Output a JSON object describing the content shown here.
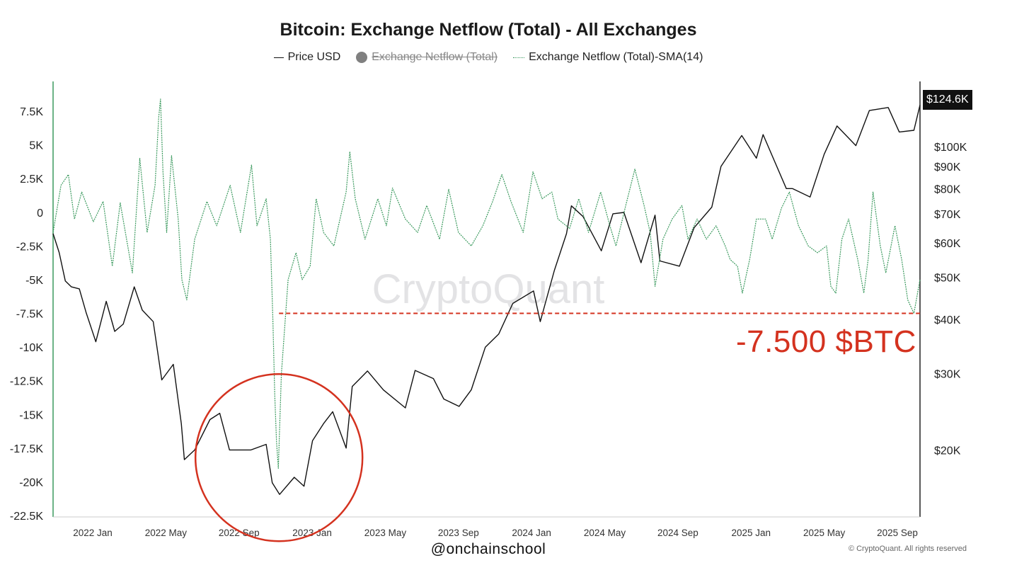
{
  "chart_data": {
    "type": "line",
    "title": "Bitcoin: Exchange Netflow (Total) - All Exchanges",
    "legend": [
      {
        "name": "Price USD",
        "style": "solid",
        "color": "#111111",
        "disabled": false
      },
      {
        "name": "Exchange Netflow (Total)",
        "style": "dot",
        "color": "#808080",
        "disabled": true
      },
      {
        "name": "Exchange Netflow (Total)-SMA(14)",
        "style": "dotted",
        "color": "#3c9a5f",
        "disabled": false
      }
    ],
    "legend_placement": "top-center",
    "x_ticks": [
      "2022 Jan",
      "2022 May",
      "2022 Sep",
      "2023 Jan",
      "2023 May",
      "2023 Sep",
      "2024 Jan",
      "2024 May",
      "2024 Sep",
      "2025 Jan",
      "2025 May",
      "2025 Sep"
    ],
    "x_range": [
      "2021-11-15",
      "2025-10-05"
    ],
    "y_left": {
      "label": "",
      "ticks": [
        "7.5K",
        "5K",
        "2.5K",
        "0",
        "-2.5K",
        "-5K",
        "-7.5K",
        "-10K",
        "-12.5K",
        "-15K",
        "-17.5K",
        "-20K",
        "-22.5K"
      ],
      "tick_values": [
        7500,
        5000,
        2500,
        0,
        -2500,
        -5000,
        -7500,
        -10000,
        -12500,
        -15000,
        -17500,
        -20000,
        -22500
      ],
      "range": [
        -22500,
        10000
      ]
    },
    "y_right": {
      "label": "",
      "scale": "log",
      "ticks": [
        "$100K",
        "$90K",
        "$80K",
        "$70K",
        "$60K",
        "$50K",
        "$40K",
        "$30K",
        "$20K"
      ],
      "tick_values": [
        100000,
        90000,
        80000,
        70000,
        60000,
        50000,
        40000,
        30000,
        20000
      ],
      "range": [
        15000,
        135000
      ]
    },
    "grid": false,
    "series": [
      {
        "name": "Price USD",
        "axis": "right",
        "color": "#111111",
        "points": [
          [
            "2021-11-15",
            63000
          ],
          [
            "2021-11-25",
            57000
          ],
          [
            "2021-12-05",
            49000
          ],
          [
            "2021-12-15",
            47500
          ],
          [
            "2021-12-28",
            47000
          ],
          [
            "2022-01-08",
            41500
          ],
          [
            "2022-01-24",
            35500
          ],
          [
            "2022-02-10",
            44000
          ],
          [
            "2022-02-24",
            37500
          ],
          [
            "2022-03-10",
            39000
          ],
          [
            "2022-03-28",
            47500
          ],
          [
            "2022-04-10",
            42000
          ],
          [
            "2022-04-28",
            39500
          ],
          [
            "2022-05-12",
            29000
          ],
          [
            "2022-05-31",
            31500
          ],
          [
            "2022-06-13",
            23000
          ],
          [
            "2022-06-18",
            19000
          ],
          [
            "2022-07-05",
            20000
          ],
          [
            "2022-07-30",
            23500
          ],
          [
            "2022-08-15",
            24300
          ],
          [
            "2022-08-31",
            20000
          ],
          [
            "2022-09-15",
            20000
          ],
          [
            "2022-10-05",
            20000
          ],
          [
            "2022-10-30",
            20600
          ],
          [
            "2022-11-09",
            16800
          ],
          [
            "2022-11-21",
            15800
          ],
          [
            "2022-12-15",
            17300
          ],
          [
            "2022-12-31",
            16500
          ],
          [
            "2023-01-14",
            21000
          ],
          [
            "2023-02-01",
            23000
          ],
          [
            "2023-02-16",
            24500
          ],
          [
            "2023-03-10",
            20200
          ],
          [
            "2023-03-20",
            28000
          ],
          [
            "2023-04-14",
            30400
          ],
          [
            "2023-05-10",
            27500
          ],
          [
            "2023-06-15",
            25000
          ],
          [
            "2023-07-01",
            30500
          ],
          [
            "2023-07-31",
            29200
          ],
          [
            "2023-08-17",
            26200
          ],
          [
            "2023-09-11",
            25200
          ],
          [
            "2023-10-01",
            27500
          ],
          [
            "2023-10-24",
            34500
          ],
          [
            "2023-11-15",
            37000
          ],
          [
            "2023-12-08",
            43500
          ],
          [
            "2024-01-11",
            46500
          ],
          [
            "2024-01-22",
            39500
          ],
          [
            "2024-02-14",
            51800
          ],
          [
            "2024-03-05",
            63000
          ],
          [
            "2024-03-13",
            73000
          ],
          [
            "2024-04-01",
            69000
          ],
          [
            "2024-05-01",
            57500
          ],
          [
            "2024-05-20",
            70000
          ],
          [
            "2024-06-07",
            70500
          ],
          [
            "2024-07-05",
            54000
          ],
          [
            "2024-07-28",
            69500
          ],
          [
            "2024-08-05",
            54500
          ],
          [
            "2024-09-06",
            53000
          ],
          [
            "2024-09-30",
            65000
          ],
          [
            "2024-10-29",
            72500
          ],
          [
            "2024-11-13",
            90000
          ],
          [
            "2024-12-05",
            100000
          ],
          [
            "2024-12-17",
            106000
          ],
          [
            "2025-01-10",
            94000
          ],
          [
            "2025-01-21",
            106500
          ],
          [
            "2025-02-28",
            80000
          ],
          [
            "2025-03-10",
            80000
          ],
          [
            "2025-04-08",
            76500
          ],
          [
            "2025-05-01",
            96000
          ],
          [
            "2025-05-22",
            111500
          ],
          [
            "2025-06-22",
            100500
          ],
          [
            "2025-07-14",
            121000
          ],
          [
            "2025-08-14",
            123000
          ],
          [
            "2025-09-01",
            108000
          ],
          [
            "2025-09-25",
            109000
          ],
          [
            "2025-10-05",
            124600
          ]
        ]
      },
      {
        "name": "Exchange Netflow (Total)-SMA(14)",
        "axis": "left",
        "color": "#3c9a5f",
        "points": [
          [
            "2021-11-15",
            -1500
          ],
          [
            "2021-11-28",
            2000
          ],
          [
            "2021-12-10",
            2800
          ],
          [
            "2021-12-20",
            -500
          ],
          [
            "2022-01-01",
            1500
          ],
          [
            "2022-01-20",
            -700
          ],
          [
            "2022-02-05",
            800
          ],
          [
            "2022-02-20",
            -4000
          ],
          [
            "2022-03-05",
            700
          ],
          [
            "2022-03-25",
            -4500
          ],
          [
            "2022-04-06",
            4000
          ],
          [
            "2022-04-18",
            -1500
          ],
          [
            "2022-05-01",
            2000
          ],
          [
            "2022-05-07",
            7000
          ],
          [
            "2022-05-10",
            8400
          ],
          [
            "2022-05-14",
            3000
          ],
          [
            "2022-05-20",
            -1500
          ],
          [
            "2022-05-28",
            4200
          ],
          [
            "2022-06-08",
            -500
          ],
          [
            "2022-06-14",
            -5000
          ],
          [
            "2022-06-22",
            -6500
          ],
          [
            "2022-07-05",
            -2000
          ],
          [
            "2022-07-25",
            800
          ],
          [
            "2022-08-10",
            -1000
          ],
          [
            "2022-09-01",
            2000
          ],
          [
            "2022-09-18",
            -1500
          ],
          [
            "2022-10-06",
            3500
          ],
          [
            "2022-10-15",
            -1000
          ],
          [
            "2022-10-30",
            1000
          ],
          [
            "2022-11-06",
            -2000
          ],
          [
            "2022-11-10",
            -8000
          ],
          [
            "2022-11-13",
            -13500
          ],
          [
            "2022-11-16",
            -17000
          ],
          [
            "2022-11-19",
            -19000
          ],
          [
            "2022-11-24",
            -12000
          ],
          [
            "2022-12-05",
            -5000
          ],
          [
            "2022-12-18",
            -3000
          ],
          [
            "2022-12-28",
            -5000
          ],
          [
            "2023-01-10",
            -4000
          ],
          [
            "2023-01-20",
            1000
          ],
          [
            "2023-02-01",
            -1500
          ],
          [
            "2023-02-18",
            -2500
          ],
          [
            "2023-03-10",
            1500
          ],
          [
            "2023-03-16",
            4500
          ],
          [
            "2023-03-25",
            1000
          ],
          [
            "2023-04-10",
            -2000
          ],
          [
            "2023-05-01",
            1000
          ],
          [
            "2023-05-15",
            -1000
          ],
          [
            "2023-05-25",
            1800
          ],
          [
            "2023-06-15",
            -500
          ],
          [
            "2023-07-05",
            -1500
          ],
          [
            "2023-07-20",
            500
          ],
          [
            "2023-08-10",
            -2000
          ],
          [
            "2023-08-25",
            1700
          ],
          [
            "2023-09-10",
            -1500
          ],
          [
            "2023-10-01",
            -2500
          ],
          [
            "2023-10-20",
            -1000
          ],
          [
            "2023-11-05",
            800
          ],
          [
            "2023-11-20",
            2800
          ],
          [
            "2023-12-05",
            800
          ],
          [
            "2023-12-25",
            -1500
          ],
          [
            "2024-01-10",
            3000
          ],
          [
            "2024-01-25",
            1000
          ],
          [
            "2024-02-10",
            1500
          ],
          [
            "2024-02-20",
            -500
          ],
          [
            "2024-03-10",
            -1200
          ],
          [
            "2024-03-25",
            1000
          ],
          [
            "2024-04-10",
            -1500
          ],
          [
            "2024-04-30",
            1500
          ],
          [
            "2024-05-15",
            -1000
          ],
          [
            "2024-05-25",
            -2500
          ],
          [
            "2024-06-10",
            500
          ],
          [
            "2024-06-25",
            3200
          ],
          [
            "2024-07-10",
            500
          ],
          [
            "2024-07-20",
            -1500
          ],
          [
            "2024-07-28",
            -5500
          ],
          [
            "2024-08-10",
            -2000
          ],
          [
            "2024-08-25",
            -500
          ],
          [
            "2024-09-10",
            500
          ],
          [
            "2024-09-20",
            -2000
          ],
          [
            "2024-10-05",
            -500
          ],
          [
            "2024-10-20",
            -2000
          ],
          [
            "2024-11-05",
            -1000
          ],
          [
            "2024-11-20",
            -2500
          ],
          [
            "2024-11-28",
            -3500
          ],
          [
            "2024-12-10",
            -4000
          ],
          [
            "2024-12-18",
            -6000
          ],
          [
            "2024-12-30",
            -3500
          ],
          [
            "2025-01-10",
            -500
          ],
          [
            "2025-01-25",
            -500
          ],
          [
            "2025-02-05",
            -2000
          ],
          [
            "2025-02-20",
            300
          ],
          [
            "2025-03-05",
            1500
          ],
          [
            "2025-03-20",
            -1000
          ],
          [
            "2025-04-05",
            -2500
          ],
          [
            "2025-04-20",
            -3000
          ],
          [
            "2025-05-05",
            -2500
          ],
          [
            "2025-05-12",
            -5500
          ],
          [
            "2025-05-20",
            -6000
          ],
          [
            "2025-05-30",
            -2000
          ],
          [
            "2025-06-10",
            -500
          ],
          [
            "2025-06-25",
            -3500
          ],
          [
            "2025-07-05",
            -6000
          ],
          [
            "2025-07-12",
            -3500
          ],
          [
            "2025-07-20",
            1500
          ],
          [
            "2025-08-01",
            -2500
          ],
          [
            "2025-08-10",
            -4500
          ],
          [
            "2025-08-25",
            -1000
          ],
          [
            "2025-09-05",
            -3500
          ],
          [
            "2025-09-15",
            -6500
          ],
          [
            "2025-09-25",
            -7500
          ],
          [
            "2025-10-05",
            -5000
          ]
        ]
      }
    ],
    "annotations": [
      {
        "type": "hline",
        "axis": "left",
        "value": -7500,
        "from": "2022-11-20",
        "to": "2025-10-05",
        "color": "#d4321f",
        "style": "dashed"
      },
      {
        "type": "text",
        "text": "-7.500 $BTC",
        "color": "#d4321f"
      },
      {
        "type": "circle",
        "center_date": "2022-11-20",
        "center_price": 19200,
        "color": "#d4321f"
      }
    ],
    "current_price_label": "$124.6K",
    "watermark": "CryptoQuant",
    "handle": "@onchainschool",
    "copyright": "© CryptoQuant. All rights reserved"
  }
}
